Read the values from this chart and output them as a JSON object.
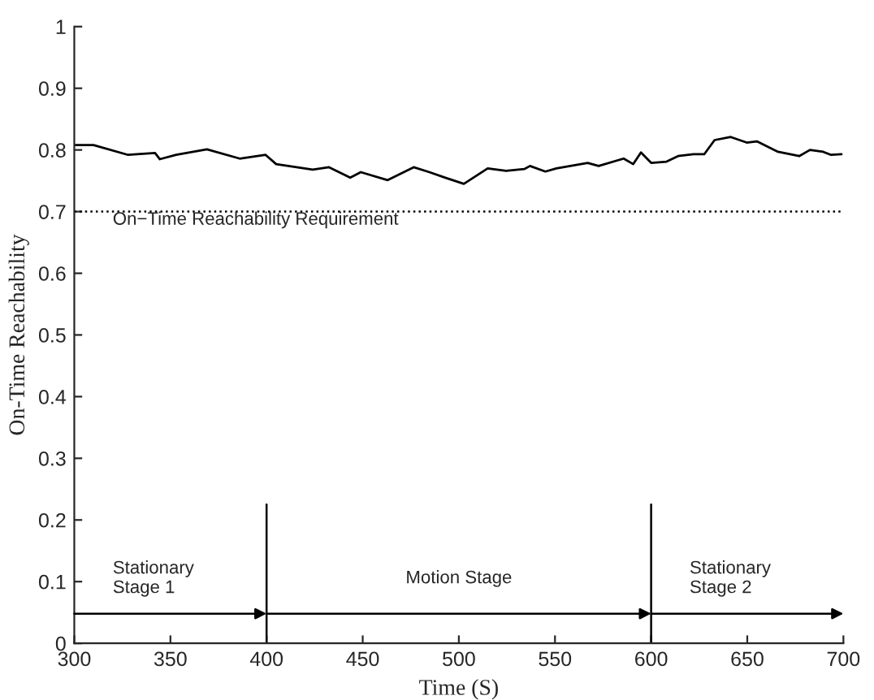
{
  "chart_data": {
    "type": "line",
    "xlabel": "Time (S)",
    "ylabel": "On-Time Reachability",
    "x": [
      300.6,
      310,
      328,
      342,
      344.5,
      353,
      369,
      386,
      399.5,
      405,
      424,
      432.5,
      443.5,
      449,
      463,
      476.5,
      484.7,
      493,
      502.6,
      515,
      524.6,
      534,
      537,
      545,
      550.7,
      567,
      572.7,
      585.7,
      590.7,
      594.7,
      600,
      608,
      614,
      622,
      627.6,
      633,
      641.4,
      649.7,
      655,
      660.7,
      666,
      677,
      682.6,
      689.5,
      693.6,
      699
    ],
    "series": [
      {
        "color": "#000000",
        "values": [
          0.808,
          0.808,
          0.792,
          0.795,
          0.785,
          0.792,
          0.801,
          0.786,
          0.792,
          0.777,
          0.768,
          0.772,
          0.755,
          0.764,
          0.751,
          0.772,
          0.764,
          0.755,
          0.745,
          0.77,
          0.766,
          0.769,
          0.774,
          0.765,
          0.77,
          0.779,
          0.774,
          0.786,
          0.777,
          0.796,
          0.779,
          0.781,
          0.79,
          0.793,
          0.793,
          0.816,
          0.821,
          0.812,
          0.814,
          0.805,
          0.797,
          0.79,
          0.8,
          0.797,
          0.792,
          0.793
        ]
      }
    ],
    "xlim": [
      300,
      700
    ],
    "xticks": [
      300,
      350,
      400,
      450,
      500,
      550,
      600,
      650,
      700
    ],
    "ylim": [
      0,
      1
    ],
    "yticks": [
      0,
      0.1,
      0.2,
      0.3,
      0.4,
      0.5,
      0.6,
      0.7,
      0.8,
      0.9,
      1
    ],
    "ref_lines": [
      {
        "axis": "y",
        "value": 0.7,
        "label": "On−Time Reachability Requirement",
        "line_style": "dotted",
        "color": "#000000"
      },
      {
        "axis": "x",
        "value": 400,
        "color": "#000000"
      },
      {
        "axis": "x",
        "value": 600,
        "color": "#000000"
      }
    ],
    "annotations": [
      "Stationary\nStage 1",
      "Motion Stage",
      "Stationary\nStage 2"
    ],
    "grid": false,
    "legend": false,
    "marker": "none",
    "line_style": "solid"
  }
}
